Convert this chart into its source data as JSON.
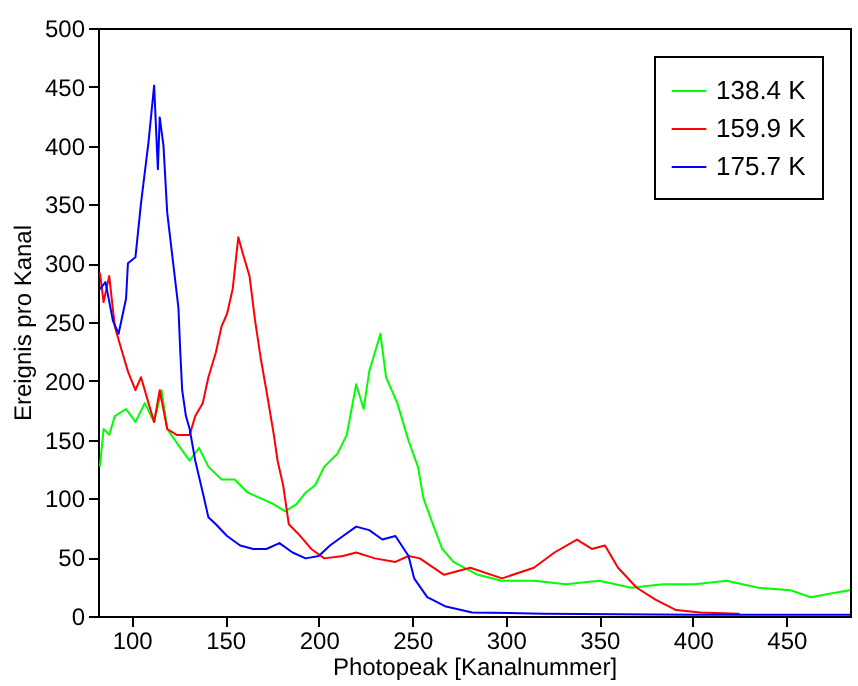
{
  "chart_data": {
    "type": "line",
    "xlabel": "Photopeak [Kanalnummer]",
    "ylabel": "Ereignis pro Kanal",
    "xlim": [
      82,
      484
    ],
    "ylim": [
      0,
      500
    ],
    "xticks": [
      100,
      150,
      200,
      250,
      300,
      350,
      400,
      450
    ],
    "yticks": [
      0,
      50,
      100,
      150,
      200,
      250,
      300,
      350,
      400,
      450,
      500
    ],
    "grid": false,
    "legend": "top right",
    "line_style": "solid",
    "marker": "none",
    "series": [
      {
        "name": "138.4 K",
        "color": "#00ff00",
        "x": [
          83,
          85,
          88,
          91,
          97,
          102,
          107,
          112,
          116,
          119,
          126,
          131,
          136,
          141,
          148,
          155,
          162,
          169,
          176,
          182,
          188,
          193,
          198,
          203,
          210,
          215,
          220,
          224,
          227,
          230,
          233,
          236,
          239,
          242,
          248,
          253,
          256,
          261,
          266,
          272,
          278,
          285,
          298,
          315,
          332,
          350,
          367,
          384,
          401,
          418,
          435,
          452,
          463,
          473,
          484
        ],
        "values": [
          127,
          159,
          154,
          170,
          176,
          165,
          181,
          165,
          192,
          159,
          143,
          132,
          143,
          127,
          116,
          116,
          105,
          100,
          95,
          89,
          95,
          105,
          111,
          127,
          138,
          154,
          197,
          176,
          208,
          224,
          240,
          203,
          192,
          181,
          149,
          127,
          100,
          78,
          57,
          46,
          41,
          35,
          30,
          30,
          27,
          30,
          24,
          27,
          27,
          30,
          24,
          22,
          16,
          19,
          22
        ]
      },
      {
        "name": "159.9 K",
        "color": "#ff0000",
        "x": [
          83,
          85,
          88,
          91,
          95,
          98,
          102,
          105,
          109,
          112,
          115,
          119,
          124,
          131,
          134,
          138,
          141,
          145,
          148,
          151,
          154,
          157,
          160,
          163,
          166,
          169,
          172,
          176,
          178,
          181,
          184,
          189,
          196,
          203,
          213,
          220,
          230,
          241,
          248,
          254,
          267,
          281,
          298,
          315,
          326,
          338,
          346,
          353,
          360,
          370,
          380,
          391,
          404,
          425
        ],
        "values": [
          292,
          267,
          289,
          246,
          224,
          208,
          192,
          203,
          181,
          165,
          192,
          159,
          154,
          154,
          170,
          181,
          203,
          224,
          246,
          257,
          278,
          322,
          305,
          289,
          251,
          219,
          192,
          154,
          132,
          111,
          78,
          70,
          57,
          49,
          51,
          54,
          49,
          46,
          51,
          49,
          35,
          41,
          32,
          41,
          54,
          65,
          57,
          60,
          41,
          24,
          14,
          5,
          3,
          2
        ]
      },
      {
        "name": "175.7 K",
        "color": "#0000ff",
        "x": [
          83,
          86,
          90,
          93,
          97,
          98,
          102,
          105,
          109,
          112,
          114,
          115,
          117,
          119,
          121,
          123,
          125,
          126,
          127,
          129,
          131,
          134,
          138,
          141,
          145,
          151,
          158,
          165,
          172,
          179,
          186,
          193,
          200,
          206,
          213,
          220,
          227,
          234,
          241,
          248,
          251,
          258,
          268,
          282,
          320,
          400,
          484
        ],
        "values": [
          278,
          284,
          251,
          240,
          270,
          300,
          305,
          351,
          403,
          451,
          380,
          424,
          400,
          343,
          316,
          289,
          262,
          224,
          192,
          170,
          159,
          132,
          105,
          84,
          78,
          68,
          60,
          57,
          57,
          62,
          54,
          49,
          51,
          60,
          68,
          76,
          73,
          65,
          68,
          51,
          32,
          16,
          8,
          3,
          2,
          1,
          1
        ]
      }
    ]
  }
}
